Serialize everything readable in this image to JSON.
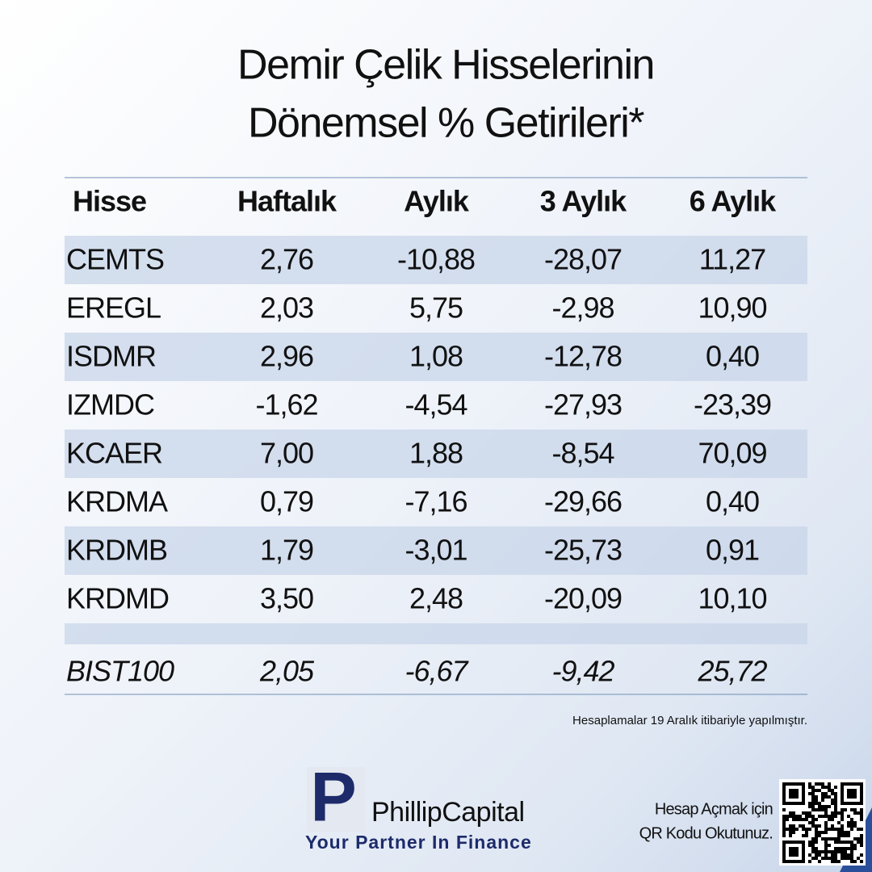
{
  "title": [
    "Demir Çelik Hisselerinin",
    "Dönemsel % Getirileri*"
  ],
  "table": {
    "header": [
      "Hisse",
      "Haftalık",
      "Aylık",
      "3 Aylık",
      "6 Aylık"
    ],
    "rows": [
      [
        "CEMTS",
        "2,76",
        "-10,88",
        "-28,07",
        "11,27"
      ],
      [
        "EREGL",
        "2,03",
        "5,75",
        "-2,98",
        "10,90"
      ],
      [
        "ISDMR",
        "2,96",
        "1,08",
        "-12,78",
        "0,40"
      ],
      [
        "IZMDC",
        "-1,62",
        "-4,54",
        "-27,93",
        "-23,39"
      ],
      [
        "KCAER",
        "7,00",
        "1,88",
        "-8,54",
        "70,09"
      ],
      [
        "KRDMA",
        "0,79",
        "-7,16",
        "-29,66",
        "0,40"
      ],
      [
        "KRDMB",
        "1,79",
        "-3,01",
        "-25,73",
        "0,91"
      ],
      [
        "KRDMD",
        "3,50",
        "2,48",
        "-20,09",
        "10,10"
      ]
    ],
    "benchmark": [
      "BIST100",
      "2,05",
      "-6,67",
      "-9,42",
      "25,72"
    ]
  },
  "note": "Hesaplamalar 19 Aralık itibariyle yapılmıştır.",
  "logo": {
    "mark": "P",
    "name": "PhillipCapital",
    "tagline": "Your Partner In Finance"
  },
  "qr_caption": [
    "Hesap Açmak için",
    "QR Kodu Okutunuz."
  ]
}
